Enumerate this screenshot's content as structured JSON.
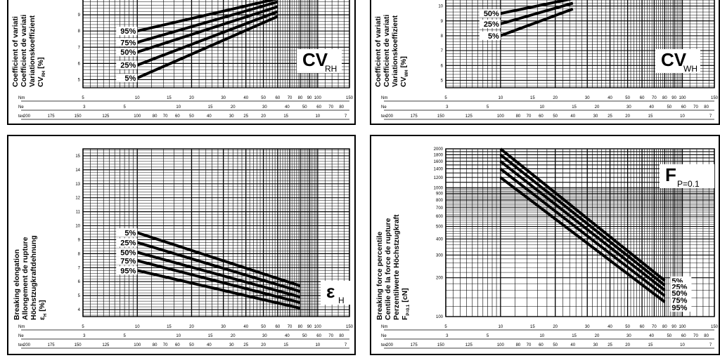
{
  "chart_data": [
    {
      "type": "line",
      "ylabel": [
        "Coefficient of variati",
        "Coefficient de variati",
        "Variationskoeffizient",
        "CV",
        "[%]"
      ],
      "ylabel_sub": "RH",
      "symbol": {
        "main": "CV",
        "sub": "RH"
      },
      "series_labels": [
        "95%",
        "75%",
        "50%",
        "25%",
        "5%"
      ],
      "x_ticks": {
        "row1": {
          "label": "Nm",
          "ticks": [
            "5",
            "10",
            "15",
            "20",
            "30",
            "40",
            "50",
            "60",
            "70",
            "80",
            "90",
            "100",
            "150"
          ]
        },
        "row2": {
          "label": "Ne",
          "ticks": [
            "3",
            "5",
            "10",
            "15",
            "20",
            "30",
            "40",
            "50",
            "60",
            "70",
            "80"
          ]
        },
        "row3": {
          "label": "tex",
          "ticks": [
            "200",
            "175",
            "150",
            "125",
            "100",
            "80",
            "70",
            "60",
            "50",
            "40",
            "30",
            "25",
            "20",
            "15",
            "10",
            "7"
          ]
        }
      },
      "y_ticks": [
        "9",
        "8",
        "7",
        "6",
        "5"
      ],
      "ylim": [
        4.5,
        10
      ],
      "series": [
        {
          "name": "95%",
          "x": [
            10,
            60
          ],
          "y": [
            8.0,
            10.0
          ]
        },
        {
          "name": "75%",
          "x": [
            10,
            60
          ],
          "y": [
            7.3,
            9.8
          ]
        },
        {
          "name": "50%",
          "x": [
            10,
            60
          ],
          "y": [
            6.7,
            9.5
          ]
        },
        {
          "name": "25%",
          "x": [
            10,
            60
          ],
          "y": [
            5.9,
            9.2
          ]
        },
        {
          "name": "5%",
          "x": [
            10,
            60
          ],
          "y": [
            5.1,
            8.9
          ]
        }
      ]
    },
    {
      "type": "line",
      "ylabel": [
        "Coefficient of variati",
        "Coefficient de variati",
        "Variationskoeffizient",
        "CV",
        "[%]"
      ],
      "ylabel_sub": "WH",
      "symbol": {
        "main": "CV",
        "sub": "WH"
      },
      "series_labels": [
        "50%",
        "25%",
        "5%"
      ],
      "x_ticks": {
        "row1": {
          "label": "Nm",
          "ticks": [
            "5",
            "10",
            "15",
            "20",
            "30",
            "40",
            "50",
            "60",
            "70",
            "80",
            "90",
            "100",
            "150"
          ]
        },
        "row2": {
          "label": "Ne",
          "ticks": [
            "3",
            "5",
            "10",
            "15",
            "20",
            "30",
            "40",
            "50",
            "60",
            "70",
            "80"
          ]
        },
        "row3": {
          "label": "tex",
          "ticks": [
            "200",
            "175",
            "150",
            "125",
            "100",
            "80",
            "70",
            "60",
            "50",
            "40",
            "30",
            "25",
            "20",
            "15",
            "10",
            "7"
          ]
        }
      },
      "y_ticks": [
        "10",
        "9",
        "8",
        "7",
        "6",
        "5"
      ],
      "ylim": [
        4.5,
        10.5
      ],
      "series": [
        {
          "name": "50%",
          "x": [
            10,
            25
          ],
          "y": [
            9.5,
            10.5
          ]
        },
        {
          "name": "25%",
          "x": [
            10,
            25
          ],
          "y": [
            8.8,
            10.2
          ]
        },
        {
          "name": "5%",
          "x": [
            10,
            25
          ],
          "y": [
            8.0,
            9.8
          ]
        }
      ]
    },
    {
      "type": "line",
      "ylabel": [
        "Breaking elongation",
        "Allongement de rupture",
        "Höchstzugkraftdehnung",
        "ε",
        "[%]"
      ],
      "ylabel_sub": "H",
      "symbol": {
        "main": "ε",
        "sub": "H"
      },
      "series_labels": [
        "5%",
        "25%",
        "50%",
        "75%",
        "95%"
      ],
      "x_ticks": {
        "row1": {
          "label": "Nm",
          "ticks": [
            "5",
            "10",
            "15",
            "20",
            "30",
            "40",
            "50",
            "60",
            "70",
            "80",
            "90",
            "100",
            "150"
          ]
        },
        "row2": {
          "label": "Ne",
          "ticks": [
            "3",
            "5",
            "10",
            "15",
            "20",
            "30",
            "40",
            "50",
            "60",
            "70",
            "80"
          ]
        },
        "row3": {
          "label": "tex",
          "ticks": [
            "200",
            "175",
            "150",
            "125",
            "100",
            "80",
            "70",
            "60",
            "50",
            "40",
            "30",
            "25",
            "20",
            "15",
            "10",
            "7"
          ]
        }
      },
      "y_ticks": [
        "15",
        "14",
        "13",
        "12",
        "11",
        "10",
        "9",
        "8",
        "7",
        "6",
        "5",
        "4"
      ],
      "ylim": [
        3.5,
        15.5
      ],
      "series": [
        {
          "name": "5%",
          "x": [
            10,
            80
          ],
          "y": [
            9.5,
            5.7
          ]
        },
        {
          "name": "25%",
          "x": [
            10,
            80
          ],
          "y": [
            8.8,
            5.3
          ]
        },
        {
          "name": "50%",
          "x": [
            10,
            80
          ],
          "y": [
            8.1,
            4.9
          ]
        },
        {
          "name": "75%",
          "x": [
            10,
            80
          ],
          "y": [
            7.5,
            4.5
          ]
        },
        {
          "name": "95%",
          "x": [
            10,
            80
          ],
          "y": [
            6.8,
            4.1
          ]
        }
      ]
    },
    {
      "type": "line",
      "ylabel": [
        "Breaking force percentile",
        "Centile de la force de rupture",
        "Perzentilwerte Höchstzugkraft",
        "F",
        "[cN]"
      ],
      "ylabel_sub": "P=0.1",
      "symbol": {
        "main": "F",
        "sub": "P=0.1"
      },
      "series_labels": [
        "5%",
        "25%",
        "50%",
        "75%",
        "95%"
      ],
      "x_ticks": {
        "row1": {
          "label": "Nm",
          "ticks": [
            "5",
            "10",
            "15",
            "20",
            "30",
            "40",
            "50",
            "60",
            "70",
            "80",
            "90",
            "100",
            "150"
          ]
        },
        "row2": {
          "label": "Ne",
          "ticks": [
            "3",
            "5",
            "10",
            "15",
            "20",
            "30",
            "40",
            "50",
            "60",
            "70",
            "80"
          ]
        },
        "row3": {
          "label": "tex",
          "ticks": [
            "200",
            "175",
            "150",
            "125",
            "100",
            "80",
            "70",
            "60",
            "50",
            "40",
            "30",
            "25",
            "20",
            "15",
            "10",
            "7"
          ]
        }
      },
      "y_ticks": [
        "2000",
        "1800",
        "1600",
        "1400",
        "1200",
        "1000",
        "900",
        "800",
        "700",
        "600",
        "500",
        "400",
        "300",
        "200",
        "100"
      ],
      "ylim": [
        100,
        2000
      ],
      "series": [
        {
          "name": "5%",
          "x": [
            10,
            80
          ],
          "y": [
            2000,
            190
          ]
        },
        {
          "name": "25%",
          "x": [
            10,
            80
          ],
          "y": [
            1800,
            175
          ]
        },
        {
          "name": "50%",
          "x": [
            10,
            80
          ],
          "y": [
            1600,
            160
          ]
        },
        {
          "name": "75%",
          "x": [
            10,
            80
          ],
          "y": [
            1400,
            145
          ]
        },
        {
          "name": "95%",
          "x": [
            10,
            80
          ],
          "y": [
            1200,
            130
          ]
        }
      ]
    }
  ]
}
